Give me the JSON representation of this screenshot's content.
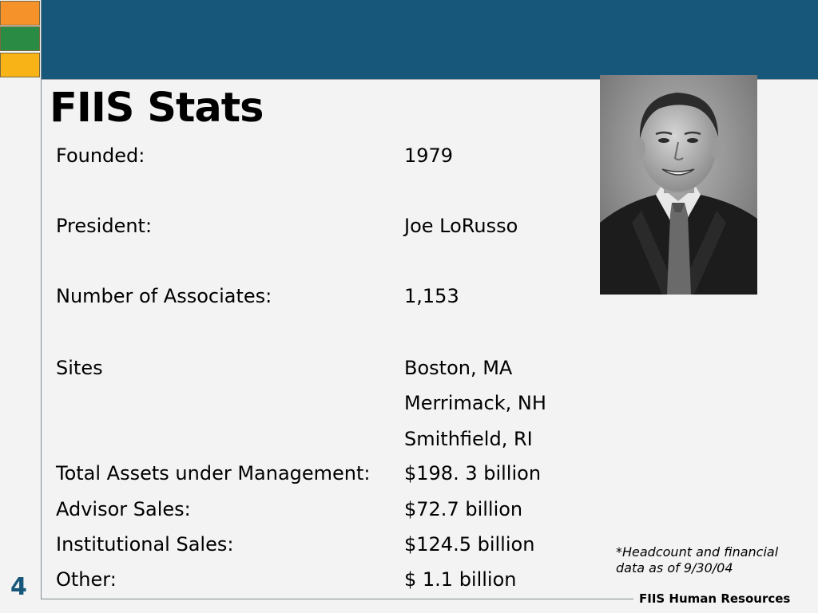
{
  "slide": {
    "title": "FIIS Stats",
    "page_number": "4",
    "footer_brand": "FIIS Human Resources",
    "footnote_line1": "*Headcount and financial",
    "footnote_line2": "data as of 9/30/04",
    "colors": {
      "header_bar": "#17587a",
      "square_orange": "#f5922a",
      "square_green": "#2a8c44",
      "square_yellow": "#f8b417"
    }
  },
  "stats": [
    {
      "label": "Founded:",
      "value": "1979"
    },
    {
      "label": "President:",
      "value": "Joe LoRusso"
    },
    {
      "label": "Number of Associates:",
      "value": "1,153"
    },
    {
      "label": "Sites",
      "value": "Boston, MA"
    },
    {
      "label": "",
      "value": "Merrimack, NH"
    },
    {
      "label": "",
      "value": "Smithfield, RI"
    },
    {
      "label": "Total Assets under Management:",
      "value": "$198. 3 billion"
    },
    {
      "label": "Advisor Sales:",
      "value": "$72.7 billion"
    },
    {
      "label": "Institutional Sales:",
      "value": "$124.5 billion"
    },
    {
      "label": "Other:",
      "value": "$ 1.1 billion"
    }
  ],
  "photo": {
    "subject": "portrait-photo"
  }
}
